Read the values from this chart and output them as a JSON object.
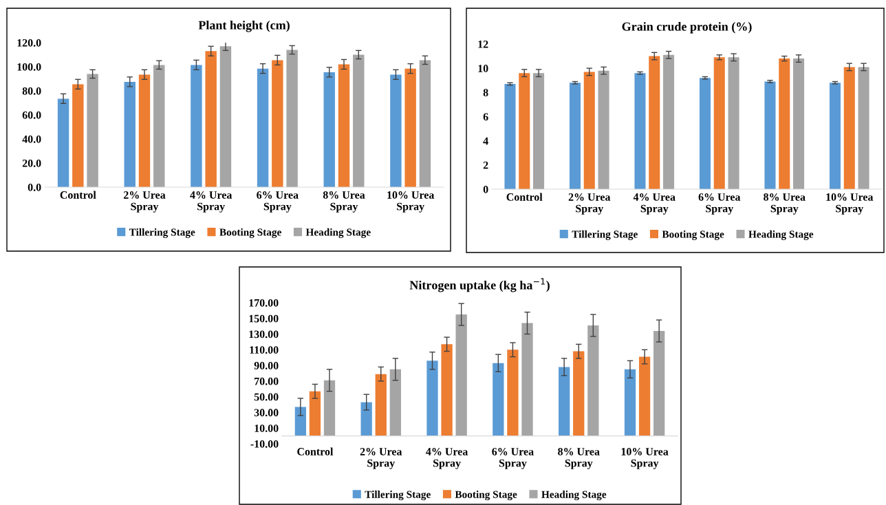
{
  "chart_data": [
    {
      "type": "bar",
      "title": "Plant height (cm)",
      "categories": [
        "Control",
        "2% Urea\nSpray",
        "4% Urea\nSpray",
        "6% Urea\nSpray",
        "8% Urea\nSpray",
        "10% Urea\nSpray"
      ],
      "ylim": [
        0,
        120
      ],
      "yticks": [
        {
          "value": 0,
          "label": "0.0"
        },
        {
          "value": 20,
          "label": "20.0"
        },
        {
          "value": 40,
          "label": "40.0"
        },
        {
          "value": 60,
          "label": "60.0"
        },
        {
          "value": 80,
          "label": "80.0"
        },
        {
          "value": 100,
          "label": "100.0"
        },
        {
          "value": 120,
          "label": "120.0"
        }
      ],
      "grid": false,
      "legend": "bottom",
      "series": [
        {
          "name": "Tillering Stage",
          "color": "#5b9bd5",
          "values": [
            73.5,
            87.5,
            101.5,
            98.5,
            95.5,
            93.5
          ],
          "errors": [
            4,
            4,
            4,
            4,
            4,
            4
          ]
        },
        {
          "name": "Booting Stage",
          "color": "#ed7d31",
          "values": [
            85.5,
            93.5,
            113,
            105.5,
            102,
            98.5
          ],
          "errors": [
            4,
            4,
            4,
            4,
            4,
            4
          ]
        },
        {
          "name": "Heading Stage",
          "color": "#a5a5a5",
          "values": [
            94,
            101.5,
            117,
            114,
            110,
            105.5
          ],
          "errors": [
            3.5,
            3.5,
            3.5,
            3.5,
            3.5,
            3.5
          ]
        }
      ]
    },
    {
      "type": "bar",
      "title": "Grain crude protein (%)",
      "categories": [
        "Control",
        "2% Urea\nSpray",
        "4% Urea\nSpray",
        "6% Urea\nSpray",
        "8% Urea\nSpray",
        "10% Urea\nSpray"
      ],
      "ylim": [
        0,
        12
      ],
      "yticks": [
        0,
        2,
        4,
        6,
        8,
        10,
        12
      ],
      "grid": false,
      "legend": "bottom",
      "series": [
        {
          "name": "Tillering Stage",
          "color": "#5b9bd5",
          "values": [
            8.7,
            8.8,
            9.6,
            9.2,
            8.9,
            8.8
          ],
          "errors": [
            0.1,
            0.1,
            0.1,
            0.1,
            0.1,
            0.1
          ]
        },
        {
          "name": "Booting Stage",
          "color": "#ed7d31",
          "values": [
            9.6,
            9.7,
            11,
            10.9,
            10.8,
            10.1
          ],
          "errors": [
            0.3,
            0.3,
            0.3,
            0.2,
            0.2,
            0.3
          ]
        },
        {
          "name": "Heading Stage",
          "color": "#a5a5a5",
          "values": [
            9.6,
            9.8,
            11.1,
            10.9,
            10.8,
            10.1
          ],
          "errors": [
            0.3,
            0.3,
            0.3,
            0.3,
            0.3,
            0.3
          ]
        }
      ]
    },
    {
      "type": "bar",
      "title": "Nitrogen uptake (kg ha$^{−1}$)",
      "categories": [
        "Control",
        "2% Urea\nSpray",
        "4% Urea\nSpray",
        "6% Urea\nSpray",
        "8% Urea\nSpray",
        "10% Urea\nSpray"
      ],
      "ylim": [
        -10,
        170
      ],
      "yticks": [
        {
          "value": -10,
          "label": "-10.00"
        },
        {
          "value": 10,
          "label": "10.00"
        },
        {
          "value": 30,
          "label": "30.00"
        },
        {
          "value": 50,
          "label": "50.00"
        },
        {
          "value": 70,
          "label": "70.00"
        },
        {
          "value": 90,
          "label": "90.00"
        },
        {
          "value": 110,
          "label": "110.00"
        },
        {
          "value": 130,
          "label": "130.00"
        },
        {
          "value": 150,
          "label": "150.00"
        },
        {
          "value": 170,
          "label": "170.00"
        }
      ],
      "grid": false,
      "legend": "bottom",
      "series": [
        {
          "name": "Tillering Stage",
          "color": "#5b9bd5",
          "values": [
            37,
            43,
            96,
            93,
            88,
            85
          ],
          "errors": [
            11,
            10,
            11,
            11,
            11,
            11
          ]
        },
        {
          "name": "Booting Stage",
          "color": "#ed7d31",
          "values": [
            57,
            79,
            117,
            110,
            108,
            101
          ],
          "errors": [
            9,
            9,
            9,
            9,
            9,
            9
          ]
        },
        {
          "name": "Heading Stage",
          "color": "#a5a5a5",
          "values": [
            71,
            85,
            155,
            144,
            141,
            134
          ],
          "errors": [
            14,
            14,
            14,
            14,
            14,
            14
          ]
        }
      ]
    }
  ]
}
